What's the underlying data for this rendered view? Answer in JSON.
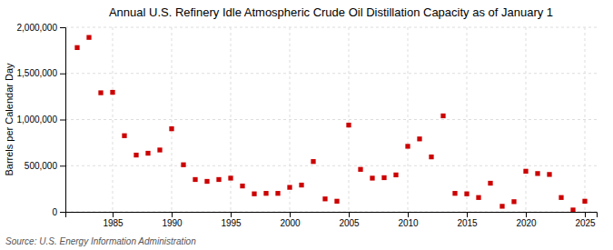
{
  "chart_data": {
    "type": "scatter",
    "title": "Annual U.S. Refinery Idle Atmospheric Crude Oil Distillation Capacity as of January 1",
    "ylabel": "Barrels per Calendar Day",
    "source": "Source: U.S. Energy Information Administration",
    "x": [
      1982,
      1983,
      1984,
      1985,
      1986,
      1987,
      1988,
      1989,
      1990,
      1991,
      1992,
      1993,
      1994,
      1995,
      1996,
      1997,
      1998,
      1999,
      2000,
      2001,
      2002,
      2003,
      2004,
      2005,
      2006,
      2007,
      2008,
      2009,
      2010,
      2011,
      2012,
      2013,
      2014,
      2015,
      2016,
      2017,
      2018,
      2019,
      2020,
      2021,
      2022,
      2023,
      2024,
      2025
    ],
    "values": [
      1780000,
      1890000,
      1290000,
      1295000,
      825000,
      615000,
      635000,
      670000,
      900000,
      510000,
      350000,
      330000,
      350000,
      365000,
      280000,
      195000,
      200000,
      200000,
      265000,
      290000,
      545000,
      140000,
      115000,
      940000,
      460000,
      365000,
      370000,
      400000,
      710000,
      790000,
      595000,
      1040000,
      200000,
      195000,
      155000,
      310000,
      60000,
      110000,
      440000,
      415000,
      405000,
      155000,
      20000,
      115000
    ],
    "color": "#cc0000",
    "marker": "square",
    "xlim": [
      1981,
      2026
    ],
    "xticks": [
      1985,
      1990,
      1995,
      2000,
      2005,
      2010,
      2015,
      2020,
      2025
    ],
    "ylim": [
      0,
      2000000
    ],
    "yticks": [
      0,
      {
        "value": 500000,
        "label": "500,000"
      },
      {
        "value": 1000000,
        "label": "1,000,000"
      },
      {
        "value": 1500000,
        "label": "1,500,000"
      },
      {
        "value": 2000000,
        "label": "2,000,000"
      }
    ],
    "grid": true
  }
}
